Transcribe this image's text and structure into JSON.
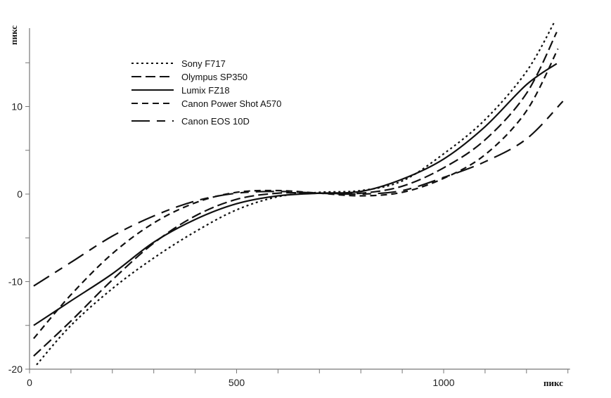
{
  "chart_data": {
    "type": "line",
    "title": "",
    "xlabel": "пикс",
    "ylabel": "пикс",
    "xlim": [
      0,
      1305
    ],
    "ylim": [
      -20,
      19
    ],
    "x_ticks": [
      0,
      500,
      1000
    ],
    "y_ticks": [
      -20,
      -10,
      0,
      10
    ],
    "grid": false,
    "legend": "top-left",
    "series": [
      {
        "name": "Sony F717",
        "style": "dotted",
        "points": [
          [
            17,
            -19.5
          ],
          [
            100,
            -15
          ],
          [
            200,
            -10.8
          ],
          [
            300,
            -7.3
          ],
          [
            400,
            -4.3
          ],
          [
            500,
            -1.8
          ],
          [
            600,
            -0.3
          ],
          [
            700,
            0.2
          ],
          [
            800,
            0.4
          ],
          [
            900,
            1.5
          ],
          [
            1000,
            4.6
          ],
          [
            1100,
            8.5
          ],
          [
            1200,
            14
          ],
          [
            1268,
            19.7
          ]
        ]
      },
      {
        "name": "Olympus SP350",
        "style": "long-dash",
        "points": [
          [
            10,
            -18.5
          ],
          [
            100,
            -14.5
          ],
          [
            200,
            -9.8
          ],
          [
            300,
            -5.6
          ],
          [
            400,
            -2.5
          ],
          [
            500,
            -0.6
          ],
          [
            600,
            0.1
          ],
          [
            700,
            0.1
          ],
          [
            800,
            0.1
          ],
          [
            900,
            0.9
          ],
          [
            1000,
            3
          ],
          [
            1100,
            6.2
          ],
          [
            1200,
            11.5
          ],
          [
            1273,
            18.5
          ]
        ]
      },
      {
        "name": "Lumix FZ18",
        "style": "solid",
        "points": [
          [
            10,
            -15
          ],
          [
            100,
            -12.2
          ],
          [
            200,
            -9.1
          ],
          [
            300,
            -5.5
          ],
          [
            400,
            -2.9
          ],
          [
            500,
            -1.1
          ],
          [
            600,
            -0.2
          ],
          [
            700,
            0.1
          ],
          [
            800,
            0.3
          ],
          [
            900,
            1.7
          ],
          [
            1000,
            4
          ],
          [
            1100,
            7.7
          ],
          [
            1200,
            12.5
          ],
          [
            1273,
            14.9
          ]
        ]
      },
      {
        "name": "Canon Power Shot A570",
        "style": "dashed",
        "points": [
          [
            10,
            -16.5
          ],
          [
            100,
            -11.5
          ],
          [
            200,
            -6.8
          ],
          [
            300,
            -3.3
          ],
          [
            400,
            -1
          ],
          [
            500,
            0.2
          ],
          [
            600,
            0.4
          ],
          [
            700,
            0.1
          ],
          [
            800,
            -0.2
          ],
          [
            900,
            0.2
          ],
          [
            1000,
            1.8
          ],
          [
            1100,
            4.5
          ],
          [
            1200,
            9.5
          ],
          [
            1276,
            16.6
          ]
        ]
      },
      {
        "name": "Canon EOS 10D",
        "style": "dash-long-gap",
        "points": [
          [
            10,
            -10.5
          ],
          [
            100,
            -7.8
          ],
          [
            200,
            -4.8
          ],
          [
            300,
            -2.5
          ],
          [
            400,
            -0.8
          ],
          [
            500,
            0.1
          ],
          [
            600,
            0.3
          ],
          [
            700,
            0.1
          ],
          [
            800,
            0
          ],
          [
            900,
            0.4
          ],
          [
            1000,
            1.9
          ],
          [
            1100,
            3.7
          ],
          [
            1200,
            6.3
          ],
          [
            1288,
            10.6
          ]
        ]
      }
    ]
  }
}
